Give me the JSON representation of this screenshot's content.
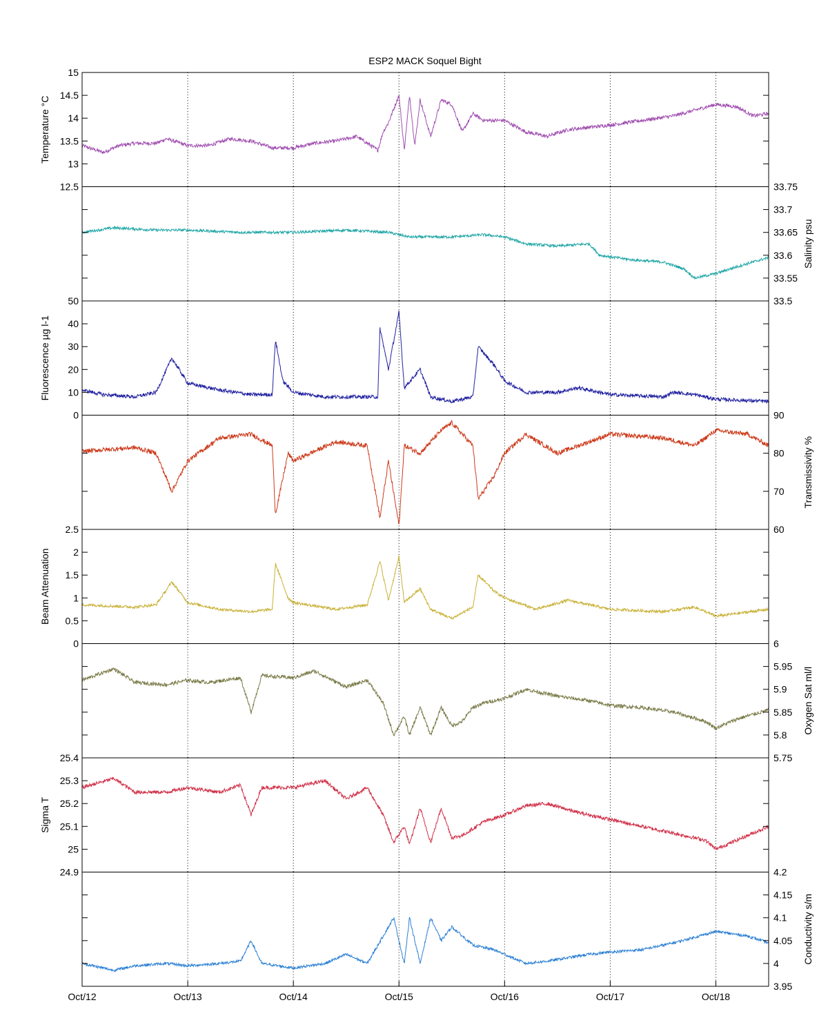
{
  "chart_data": {
    "type": "line",
    "title": "ESP2 MACK  Soquel Bight",
    "xlabel": "",
    "x_ticks": [
      "Oct/12",
      "Oct/13",
      "Oct/14",
      "Oct/15",
      "Oct/16",
      "Oct/17",
      "Oct/18"
    ],
    "xlim_days": [
      0,
      6.5
    ],
    "grid": "vertical dotted at day boundaries",
    "panels": [
      {
        "name": "temperature",
        "ylabel": "Temperature °C",
        "axis_side": "left",
        "ylim": [
          12.5,
          15
        ],
        "ticks": [
          "12.5",
          "13",
          "13.5",
          "14",
          "14.5",
          "15"
        ],
        "tick_values": [
          12.5,
          13,
          13.5,
          14,
          14.5,
          15
        ],
        "color": "#a04fb0",
        "noise": 0.04,
        "series": [
          [
            0,
            13.4
          ],
          [
            0.2,
            13.25
          ],
          [
            0.35,
            13.4
          ],
          [
            0.5,
            13.45
          ],
          [
            0.7,
            13.45
          ],
          [
            0.8,
            13.55
          ],
          [
            1.0,
            13.4
          ],
          [
            1.2,
            13.4
          ],
          [
            1.4,
            13.55
          ],
          [
            1.6,
            13.5
          ],
          [
            1.8,
            13.35
          ],
          [
            2.0,
            13.35
          ],
          [
            2.2,
            13.45
          ],
          [
            2.4,
            13.5
          ],
          [
            2.6,
            13.6
          ],
          [
            2.8,
            13.3
          ],
          [
            2.85,
            13.7
          ],
          [
            2.9,
            13.9
          ],
          [
            3.0,
            14.5
          ],
          [
            3.05,
            13.3
          ],
          [
            3.1,
            14.5
          ],
          [
            3.15,
            13.4
          ],
          [
            3.2,
            14.4
          ],
          [
            3.3,
            13.6
          ],
          [
            3.4,
            14.4
          ],
          [
            3.5,
            14.3
          ],
          [
            3.6,
            13.7
          ],
          [
            3.7,
            14.1
          ],
          [
            3.8,
            13.95
          ],
          [
            4.0,
            13.95
          ],
          [
            4.2,
            13.7
          ],
          [
            4.4,
            13.6
          ],
          [
            4.6,
            13.75
          ],
          [
            4.8,
            13.8
          ],
          [
            5.0,
            13.85
          ],
          [
            5.3,
            13.95
          ],
          [
            5.6,
            14.05
          ],
          [
            6.0,
            14.3
          ],
          [
            6.2,
            14.25
          ],
          [
            6.35,
            14.05
          ],
          [
            6.5,
            14.1
          ]
        ]
      },
      {
        "name": "salinity",
        "ylabel": "Salinity psu",
        "axis_side": "right",
        "ylim": [
          33.5,
          33.75
        ],
        "ticks": [
          "33.5",
          "33.55",
          "33.6",
          "33.65",
          "33.7",
          "33.75"
        ],
        "tick_values": [
          33.5,
          33.55,
          33.6,
          33.65,
          33.7,
          33.75
        ],
        "color": "#21a6a6",
        "noise": 0.003,
        "series": [
          [
            0,
            33.65
          ],
          [
            0.3,
            33.66
          ],
          [
            0.7,
            33.655
          ],
          [
            1.0,
            33.655
          ],
          [
            1.5,
            33.65
          ],
          [
            2.0,
            33.65
          ],
          [
            2.5,
            33.655
          ],
          [
            2.9,
            33.65
          ],
          [
            3.1,
            33.64
          ],
          [
            3.5,
            33.64
          ],
          [
            3.8,
            33.645
          ],
          [
            4.0,
            33.64
          ],
          [
            4.2,
            33.625
          ],
          [
            4.5,
            33.62
          ],
          [
            4.8,
            33.625
          ],
          [
            4.9,
            33.6
          ],
          [
            5.2,
            33.59
          ],
          [
            5.5,
            33.585
          ],
          [
            5.7,
            33.57
          ],
          [
            5.8,
            33.55
          ],
          [
            6.0,
            33.56
          ],
          [
            6.2,
            33.575
          ],
          [
            6.5,
            33.595
          ]
        ]
      },
      {
        "name": "fluorescence",
        "ylabel": "Fluorescence µg l-1",
        "axis_side": "left",
        "ylim": [
          0,
          50
        ],
        "ticks": [
          "0",
          "10",
          "20",
          "30",
          "40",
          "50"
        ],
        "tick_values": [
          0,
          10,
          20,
          30,
          40,
          50
        ],
        "color": "#1f1fa0",
        "noise": 0.8,
        "series": [
          [
            0,
            11
          ],
          [
            0.2,
            9
          ],
          [
            0.5,
            8
          ],
          [
            0.7,
            10
          ],
          [
            0.85,
            25
          ],
          [
            1.0,
            14
          ],
          [
            1.3,
            11
          ],
          [
            1.6,
            9
          ],
          [
            1.8,
            9
          ],
          [
            1.83,
            33
          ],
          [
            1.9,
            15
          ],
          [
            2.0,
            10
          ],
          [
            2.3,
            8
          ],
          [
            2.8,
            8
          ],
          [
            2.82,
            38
          ],
          [
            2.9,
            20
          ],
          [
            3.0,
            45
          ],
          [
            3.05,
            12
          ],
          [
            3.2,
            20
          ],
          [
            3.3,
            8
          ],
          [
            3.5,
            6
          ],
          [
            3.7,
            8
          ],
          [
            3.75,
            30
          ],
          [
            3.9,
            22
          ],
          [
            4.0,
            15
          ],
          [
            4.2,
            10
          ],
          [
            4.5,
            10
          ],
          [
            4.7,
            12
          ],
          [
            5.0,
            9
          ],
          [
            5.5,
            8
          ],
          [
            5.6,
            10
          ],
          [
            5.8,
            9
          ],
          [
            6.0,
            7
          ],
          [
            6.5,
            6
          ]
        ]
      },
      {
        "name": "transmissivity",
        "ylabel": "Transmissivity %",
        "axis_side": "right",
        "ylim": [
          60,
          90
        ],
        "ticks": [
          "60",
          "70",
          "80",
          "90"
        ],
        "tick_values": [
          60,
          70,
          80,
          90
        ],
        "color": "#cc3a1a",
        "noise": 0.6,
        "series": [
          [
            0,
            80.5
          ],
          [
            0.5,
            81.5
          ],
          [
            0.7,
            80
          ],
          [
            0.85,
            70
          ],
          [
            1.0,
            78
          ],
          [
            1.3,
            84
          ],
          [
            1.6,
            85
          ],
          [
            1.8,
            82
          ],
          [
            1.83,
            64
          ],
          [
            1.95,
            80
          ],
          [
            2.0,
            78
          ],
          [
            2.4,
            83
          ],
          [
            2.7,
            82
          ],
          [
            2.82,
            63
          ],
          [
            2.9,
            78
          ],
          [
            3.0,
            61
          ],
          [
            3.05,
            82
          ],
          [
            3.2,
            80
          ],
          [
            3.4,
            86
          ],
          [
            3.5,
            88
          ],
          [
            3.7,
            82
          ],
          [
            3.75,
            68
          ],
          [
            3.9,
            74
          ],
          [
            4.0,
            80
          ],
          [
            4.2,
            85
          ],
          [
            4.5,
            80
          ],
          [
            4.7,
            82
          ],
          [
            5.0,
            85
          ],
          [
            5.5,
            84
          ],
          [
            5.8,
            82
          ],
          [
            6.0,
            86
          ],
          [
            6.3,
            85
          ],
          [
            6.5,
            82
          ]
        ]
      },
      {
        "name": "beam_attenuation",
        "ylabel": "Beam Attenuation",
        "axis_side": "left",
        "ylim": [
          0,
          2.5
        ],
        "ticks": [
          "0",
          "0.5",
          "1",
          "1.5",
          "2",
          "2.5"
        ],
        "tick_values": [
          0,
          0.5,
          1,
          1.5,
          2,
          2.5
        ],
        "color": "#c8b034",
        "noise": 0.03,
        "series": [
          [
            0,
            0.85
          ],
          [
            0.5,
            0.8
          ],
          [
            0.7,
            0.85
          ],
          [
            0.85,
            1.35
          ],
          [
            1.0,
            0.9
          ],
          [
            1.3,
            0.75
          ],
          [
            1.6,
            0.7
          ],
          [
            1.8,
            0.75
          ],
          [
            1.83,
            1.75
          ],
          [
            1.95,
            1.0
          ],
          [
            2.0,
            0.9
          ],
          [
            2.4,
            0.75
          ],
          [
            2.7,
            0.85
          ],
          [
            2.82,
            1.8
          ],
          [
            2.9,
            0.95
          ],
          [
            3.0,
            1.9
          ],
          [
            3.05,
            0.9
          ],
          [
            3.2,
            1.2
          ],
          [
            3.3,
            0.75
          ],
          [
            3.5,
            0.55
          ],
          [
            3.7,
            0.8
          ],
          [
            3.75,
            1.5
          ],
          [
            3.9,
            1.15
          ],
          [
            4.0,
            1.0
          ],
          [
            4.3,
            0.75
          ],
          [
            4.6,
            0.95
          ],
          [
            5.0,
            0.75
          ],
          [
            5.5,
            0.7
          ],
          [
            5.8,
            0.8
          ],
          [
            6.0,
            0.6
          ],
          [
            6.5,
            0.75
          ]
        ]
      },
      {
        "name": "oxygen_sat",
        "ylabel": "Oxygen Sat ml/l",
        "axis_side": "right",
        "ylim": [
          5.75,
          6
        ],
        "ticks": [
          "5.75",
          "5.8",
          "5.85",
          "5.9",
          "5.95",
          "6"
        ],
        "tick_values": [
          5.75,
          5.8,
          5.85,
          5.9,
          5.95,
          6
        ],
        "color": "#7a7a48",
        "noise": 0.004,
        "series": [
          [
            0,
            5.92
          ],
          [
            0.3,
            5.945
          ],
          [
            0.5,
            5.915
          ],
          [
            0.8,
            5.91
          ],
          [
            1.0,
            5.92
          ],
          [
            1.2,
            5.915
          ],
          [
            1.5,
            5.925
          ],
          [
            1.6,
            5.85
          ],
          [
            1.7,
            5.93
          ],
          [
            2.0,
            5.925
          ],
          [
            2.2,
            5.94
          ],
          [
            2.5,
            5.905
          ],
          [
            2.7,
            5.92
          ],
          [
            2.85,
            5.87
          ],
          [
            2.95,
            5.8
          ],
          [
            3.05,
            5.84
          ],
          [
            3.1,
            5.8
          ],
          [
            3.2,
            5.86
          ],
          [
            3.3,
            5.8
          ],
          [
            3.4,
            5.86
          ],
          [
            3.5,
            5.82
          ],
          [
            3.6,
            5.83
          ],
          [
            3.7,
            5.86
          ],
          [
            3.8,
            5.87
          ],
          [
            4.0,
            5.88
          ],
          [
            4.2,
            5.9
          ],
          [
            4.5,
            5.885
          ],
          [
            4.8,
            5.875
          ],
          [
            5.0,
            5.865
          ],
          [
            5.3,
            5.86
          ],
          [
            5.6,
            5.85
          ],
          [
            5.9,
            5.83
          ],
          [
            6.0,
            5.815
          ],
          [
            6.2,
            5.835
          ],
          [
            6.5,
            5.855
          ]
        ]
      },
      {
        "name": "sigma_t",
        "ylabel": "Sigma T",
        "axis_side": "left",
        "ylim": [
          24.9,
          25.4
        ],
        "ticks": [
          "24.9",
          "25",
          "25.1",
          "25.2",
          "25.3",
          "25.4"
        ],
        "tick_values": [
          24.9,
          25,
          25.1,
          25.2,
          25.3,
          25.4
        ],
        "color": "#d03048",
        "noise": 0.008,
        "series": [
          [
            0,
            25.27
          ],
          [
            0.3,
            25.31
          ],
          [
            0.5,
            25.25
          ],
          [
            0.8,
            25.25
          ],
          [
            1.0,
            25.27
          ],
          [
            1.3,
            25.25
          ],
          [
            1.5,
            25.28
          ],
          [
            1.6,
            25.15
          ],
          [
            1.7,
            25.27
          ],
          [
            2.0,
            25.27
          ],
          [
            2.3,
            25.3
          ],
          [
            2.5,
            25.22
          ],
          [
            2.7,
            25.27
          ],
          [
            2.85,
            25.15
          ],
          [
            2.95,
            25.03
          ],
          [
            3.05,
            25.1
          ],
          [
            3.1,
            25.02
          ],
          [
            3.2,
            25.18
          ],
          [
            3.3,
            25.03
          ],
          [
            3.4,
            25.18
          ],
          [
            3.5,
            25.05
          ],
          [
            3.6,
            25.06
          ],
          [
            3.8,
            25.12
          ],
          [
            4.0,
            25.15
          ],
          [
            4.2,
            25.19
          ],
          [
            4.4,
            25.2
          ],
          [
            4.7,
            25.16
          ],
          [
            5.0,
            25.13
          ],
          [
            5.3,
            25.1
          ],
          [
            5.6,
            25.07
          ],
          [
            5.9,
            25.04
          ],
          [
            6.0,
            25.0
          ],
          [
            6.2,
            25.04
          ],
          [
            6.5,
            25.1
          ]
        ]
      },
      {
        "name": "conductivity",
        "ylabel": "Conductivity s/m",
        "axis_side": "right",
        "ylim": [
          3.95,
          4.2
        ],
        "ticks": [
          "3.95",
          "4",
          "4.05",
          "4.1",
          "4.15",
          "4.2"
        ],
        "tick_values": [
          3.95,
          4,
          4.05,
          4.1,
          4.15,
          4.2
        ],
        "color": "#2a7fd4",
        "noise": 0.003,
        "series": [
          [
            0,
            4.0
          ],
          [
            0.3,
            3.985
          ],
          [
            0.5,
            3.995
          ],
          [
            0.8,
            4.0
          ],
          [
            1.0,
            3.995
          ],
          [
            1.3,
            4.0
          ],
          [
            1.5,
            4.005
          ],
          [
            1.6,
            4.05
          ],
          [
            1.7,
            4.0
          ],
          [
            2.0,
            3.99
          ],
          [
            2.3,
            4.0
          ],
          [
            2.5,
            4.02
          ],
          [
            2.7,
            4.0
          ],
          [
            2.85,
            4.06
          ],
          [
            2.95,
            4.1
          ],
          [
            3.05,
            4.0
          ],
          [
            3.1,
            4.1
          ],
          [
            3.2,
            4.0
          ],
          [
            3.3,
            4.1
          ],
          [
            3.4,
            4.05
          ],
          [
            3.5,
            4.08
          ],
          [
            3.7,
            4.04
          ],
          [
            3.9,
            4.03
          ],
          [
            4.0,
            4.02
          ],
          [
            4.2,
            4.0
          ],
          [
            4.4,
            4.005
          ],
          [
            4.8,
            4.02
          ],
          [
            5.0,
            4.025
          ],
          [
            5.3,
            4.03
          ],
          [
            5.6,
            4.045
          ],
          [
            6.0,
            4.07
          ],
          [
            6.3,
            4.06
          ],
          [
            6.5,
            4.045
          ]
        ]
      }
    ]
  }
}
